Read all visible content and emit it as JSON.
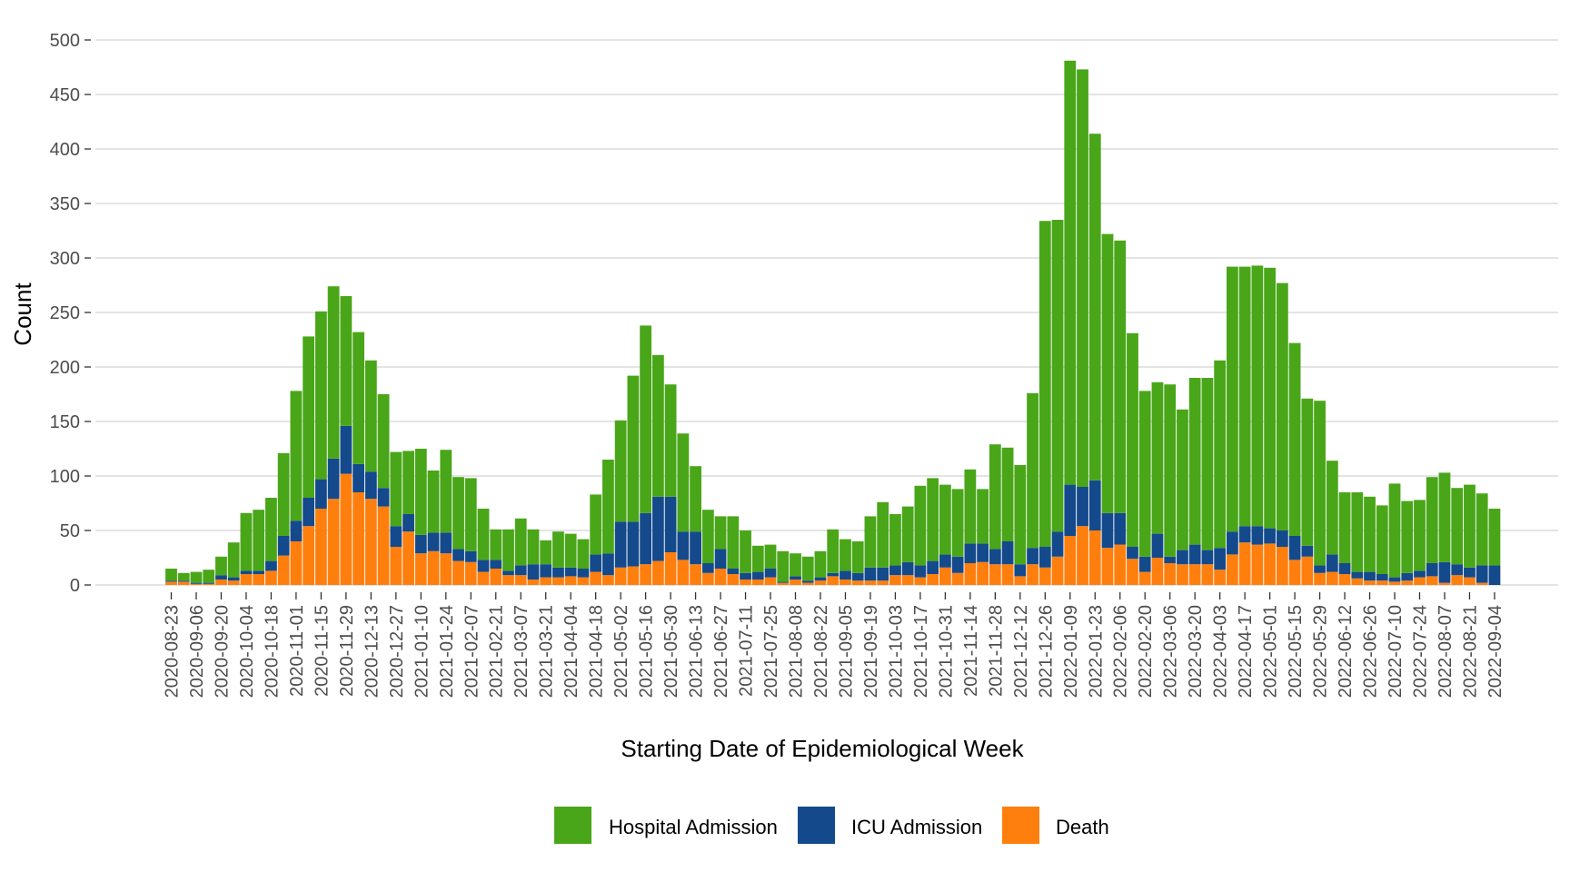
{
  "chart_data": {
    "type": "bar",
    "stacked": true,
    "xlabel": "Starting Date of Epidemiological Week",
    "ylabel": "Count",
    "ylim": [
      0,
      500
    ],
    "yticks": [
      0,
      50,
      100,
      150,
      200,
      250,
      300,
      350,
      400,
      450,
      500
    ],
    "grid": "horizontal",
    "legend_position": "bottom",
    "categories": [
      "2020-08-23",
      "2020-08-30",
      "2020-09-06",
      "2020-09-13",
      "2020-09-20",
      "2020-09-27",
      "2020-10-04",
      "2020-10-11",
      "2020-10-18",
      "2020-10-25",
      "2020-11-01",
      "2020-11-08",
      "2020-11-15",
      "2020-11-22",
      "2020-11-29",
      "2020-12-06",
      "2020-12-13",
      "2020-12-20",
      "2020-12-27",
      "2021-01-03",
      "2021-01-10",
      "2021-01-17",
      "2021-01-24",
      "2021-01-31",
      "2021-02-07",
      "2021-02-14",
      "2021-02-21",
      "2021-02-28",
      "2021-03-07",
      "2021-03-14",
      "2021-03-21",
      "2021-03-28",
      "2021-04-04",
      "2021-04-11",
      "2021-04-18",
      "2021-04-25",
      "2021-05-02",
      "2021-05-09",
      "2021-05-16",
      "2021-05-23",
      "2021-05-30",
      "2021-06-06",
      "2021-06-13",
      "2021-06-20",
      "2021-06-27",
      "2021-07-04",
      "2021-07-11",
      "2021-07-18",
      "2021-07-25",
      "2021-08-01",
      "2021-08-08",
      "2021-08-15",
      "2021-08-22",
      "2021-08-29",
      "2021-09-05",
      "2021-09-12",
      "2021-09-19",
      "2021-09-26",
      "2021-10-03",
      "2021-10-10",
      "2021-10-17",
      "2021-10-24",
      "2021-10-31",
      "2021-11-07",
      "2021-11-14",
      "2021-11-21",
      "2021-11-28",
      "2021-12-05",
      "2021-12-12",
      "2021-12-19",
      "2021-12-26",
      "2022-01-02",
      "2022-01-09",
      "2022-01-16",
      "2022-01-23",
      "2022-01-30",
      "2022-02-06",
      "2022-02-13",
      "2022-02-20",
      "2022-02-27",
      "2022-03-06",
      "2022-03-13",
      "2022-03-20",
      "2022-03-27",
      "2022-04-03",
      "2022-04-10",
      "2022-04-17",
      "2022-04-24",
      "2022-05-01",
      "2022-05-08",
      "2022-05-15",
      "2022-05-22",
      "2022-05-29",
      "2022-06-05",
      "2022-06-12",
      "2022-06-19",
      "2022-06-26",
      "2022-07-03",
      "2022-07-10",
      "2022-07-17",
      "2022-07-24",
      "2022-07-31",
      "2022-08-07",
      "2022-08-14",
      "2022-08-21",
      "2022-08-28",
      "2022-09-04"
    ],
    "tick_labels": [
      "2020-08-23",
      "2020-09-06",
      "2020-09-20",
      "2020-10-04",
      "2020-10-18",
      "2020-11-01",
      "2020-11-15",
      "2020-11-29",
      "2020-12-13",
      "2020-12-27",
      "2021-01-10",
      "2021-01-24",
      "2021-02-07",
      "2021-02-21",
      "2021-03-07",
      "2021-03-21",
      "2021-04-04",
      "2021-04-18",
      "2021-05-02",
      "2021-05-16",
      "2021-05-30",
      "2021-06-13",
      "2021-06-27",
      "2021-07-11",
      "2021-07-25",
      "2021-08-08",
      "2021-08-22",
      "2021-09-05",
      "2021-09-19",
      "2021-10-03",
      "2021-10-17",
      "2021-10-31",
      "2021-11-14",
      "2021-11-28",
      "2021-12-12",
      "2021-12-26",
      "2022-01-09",
      "2022-01-23",
      "2022-02-06",
      "2022-02-20",
      "2022-03-06",
      "2022-03-20",
      "2022-04-03",
      "2022-04-17",
      "2022-05-01",
      "2022-05-15",
      "2022-05-29",
      "2022-06-12",
      "2022-06-26",
      "2022-07-10",
      "2022-07-24",
      "2022-08-07",
      "2022-08-21",
      "2022-09-04"
    ],
    "series": [
      {
        "name": "Death",
        "color": "#ff7f0e",
        "values": [
          3,
          3,
          1,
          1,
          5,
          4,
          10,
          10,
          13,
          27,
          40,
          54,
          70,
          79,
          102,
          85,
          79,
          72,
          35,
          49,
          29,
          31,
          29,
          22,
          21,
          12,
          15,
          9,
          9,
          5,
          7,
          7,
          8,
          7,
          12,
          9,
          16,
          17,
          19,
          22,
          30,
          23,
          19,
          11,
          15,
          10,
          5,
          5,
          7,
          2,
          5,
          2,
          4,
          8,
          5,
          4,
          4,
          4,
          9,
          9,
          7,
          10,
          16,
          11,
          20,
          21,
          19,
          19,
          8,
          19,
          16,
          26,
          45,
          54,
          50,
          34,
          37,
          24,
          12,
          25,
          20,
          19,
          19,
          19,
          14,
          28,
          39,
          37,
          38,
          35,
          23,
          26,
          11,
          12,
          10,
          6,
          4,
          4,
          3,
          4,
          7,
          8,
          2,
          9,
          7,
          2,
          0
        ]
      },
      {
        "name": "ICU Admission",
        "color": "#144a8c",
        "values": [
          1,
          1,
          1,
          1,
          4,
          3,
          3,
          3,
          9,
          18,
          19,
          26,
          27,
          37,
          44,
          26,
          25,
          17,
          19,
          16,
          17,
          17,
          19,
          11,
          10,
          11,
          8,
          4,
          9,
          14,
          12,
          9,
          8,
          8,
          16,
          20,
          42,
          41,
          47,
          59,
          51,
          26,
          30,
          9,
          18,
          5,
          6,
          7,
          8,
          1,
          3,
          2,
          3,
          3,
          8,
          7,
          12,
          12,
          9,
          12,
          11,
          12,
          12,
          15,
          18,
          17,
          14,
          21,
          11,
          15,
          19,
          23,
          47,
          36,
          46,
          32,
          29,
          11,
          14,
          22,
          6,
          13,
          18,
          13,
          20,
          21,
          15,
          17,
          14,
          15,
          22,
          10,
          7,
          16,
          10,
          6,
          8,
          6,
          4,
          7,
          6,
          12,
          19,
          10,
          9,
          16,
          18
        ]
      },
      {
        "name": "Hospital Admission",
        "color": "#4aa619",
        "values": [
          11,
          7,
          10,
          12,
          17,
          32,
          53,
          56,
          58,
          76,
          119,
          148,
          154,
          158,
          119,
          121,
          102,
          86,
          68,
          58,
          79,
          57,
          76,
          66,
          67,
          47,
          28,
          38,
          43,
          32,
          22,
          33,
          31,
          27,
          55,
          86,
          93,
          134,
          172,
          130,
          103,
          90,
          60,
          49,
          30,
          48,
          39,
          24,
          22,
          28,
          21,
          22,
          24,
          40,
          29,
          29,
          47,
          60,
          47,
          51,
          73,
          76,
          64,
          62,
          68,
          50,
          96,
          86,
          91,
          142,
          299,
          286,
          389,
          383,
          318,
          256,
          250,
          196,
          152,
          139,
          158,
          129,
          153,
          158,
          172,
          243,
          238,
          239,
          239,
          227,
          177,
          135,
          151,
          86,
          65,
          73,
          69,
          63,
          86,
          66,
          65,
          79,
          82,
          70,
          76,
          66,
          52
        ]
      }
    ],
    "legend": [
      {
        "label": "Hospital Admission",
        "color": "#4aa619"
      },
      {
        "label": "ICU Admission",
        "color": "#144a8c"
      },
      {
        "label": "Death",
        "color": "#ff7f0e"
      }
    ]
  }
}
